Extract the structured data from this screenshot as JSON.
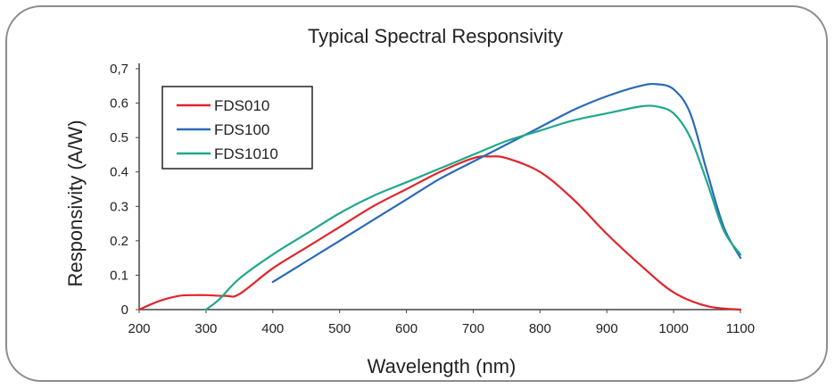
{
  "chart_data": {
    "type": "line",
    "title": "Typical Spectral Responsivity",
    "xlabel": "Wavelength (nm)",
    "ylabel": "Responsivity (A/W)",
    "xlim": [
      200,
      1100
    ],
    "ylim": [
      0,
      0.7
    ],
    "x_ticks": [
      "200",
      "300",
      "400",
      "500",
      "600",
      "700",
      "800",
      "900",
      "1000",
      "1100"
    ],
    "y_ticks": [
      "0",
      "0.1",
      "0.2",
      "0.3",
      "0.4",
      "0.5",
      "0.6",
      "0,7"
    ],
    "grid": false,
    "legend_position": "top-left",
    "series": [
      {
        "name": "FDS010",
        "color": "#e3242b",
        "x": [
          200,
          230,
          260,
          280,
          300,
          330,
          350,
          400,
          450,
          500,
          550,
          600,
          650,
          700,
          725,
          750,
          800,
          850,
          900,
          950,
          1000,
          1050,
          1100
        ],
        "y": [
          0.0,
          0.025,
          0.04,
          0.042,
          0.042,
          0.04,
          0.045,
          0.12,
          0.18,
          0.24,
          0.3,
          0.35,
          0.4,
          0.44,
          0.445,
          0.44,
          0.4,
          0.32,
          0.22,
          0.13,
          0.05,
          0.01,
          0.0
        ]
      },
      {
        "name": "FDS100",
        "color": "#2a6ab8",
        "x": [
          400,
          450,
          500,
          550,
          600,
          650,
          700,
          750,
          800,
          850,
          900,
          950,
          975,
          1000,
          1025,
          1050,
          1075,
          1100
        ],
        "y": [
          0.08,
          0.14,
          0.2,
          0.26,
          0.32,
          0.38,
          0.43,
          0.48,
          0.53,
          0.58,
          0.62,
          0.65,
          0.655,
          0.64,
          0.57,
          0.4,
          0.24,
          0.15
        ]
      },
      {
        "name": "FDS1010",
        "color": "#1fa88a",
        "x": [
          300,
          320,
          350,
          400,
          450,
          500,
          550,
          600,
          650,
          700,
          750,
          800,
          850,
          900,
          950,
          975,
          1000,
          1025,
          1050,
          1075,
          1100
        ],
        "y": [
          0.0,
          0.03,
          0.09,
          0.16,
          0.22,
          0.28,
          0.33,
          0.37,
          0.41,
          0.45,
          0.49,
          0.52,
          0.55,
          0.57,
          0.59,
          0.59,
          0.57,
          0.5,
          0.37,
          0.23,
          0.16
        ]
      }
    ]
  }
}
